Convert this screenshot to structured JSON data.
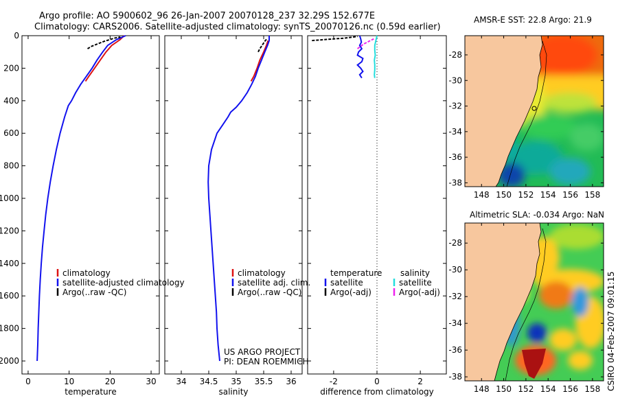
{
  "chart_data": [
    {
      "type": "line",
      "title": "Argo profile: AO 5900602_96 26-Jan-2007 20070128_237 32.29S 152.677E",
      "subtitle": "Climatology: CARS2006. Satellite-adjusted climatology: synTS_20070126.nc (0.59d earlier)",
      "xlabel": "temperature",
      "ylabel": "",
      "xlim": [
        -1.5,
        32
      ],
      "ylim": [
        2080,
        0
      ],
      "xticks": [
        0,
        10,
        20,
        30
      ],
      "yticks": [
        0,
        200,
        400,
        600,
        800,
        1000,
        1200,
        1400,
        1600,
        1800,
        2000
      ],
      "legend": [
        "climatology",
        "satellite-adjusted climatology",
        "Argo(..raw -QC)"
      ],
      "series": [
        {
          "name": "climatology",
          "color": "#dd1111",
          "depth": [
            0,
            25,
            60,
            100,
            150,
            200,
            250,
            280
          ],
          "values": [
            23.4,
            22.4,
            20.4,
            19.0,
            17.6,
            16.2,
            14.8,
            14.0
          ]
        },
        {
          "name": "satellite-adjusted climatology",
          "color": "#1111ee",
          "depth": [
            0,
            25,
            60,
            100,
            150,
            200,
            250,
            300,
            350,
            400,
            430,
            500,
            600,
            700,
            800,
            900,
            1000,
            1100,
            1200,
            1300,
            1400,
            1500,
            1600,
            1700,
            1800,
            1900,
            2000
          ],
          "values": [
            23.8,
            21.5,
            19.4,
            18.2,
            16.8,
            15.6,
            14.2,
            12.8,
            11.6,
            10.6,
            9.8,
            8.9,
            7.8,
            6.9,
            6.1,
            5.4,
            4.8,
            4.3,
            3.9,
            3.5,
            3.2,
            2.95,
            2.75,
            2.6,
            2.45,
            2.35,
            2.2
          ]
        },
        {
          "name": "Argo(..raw -QC)",
          "color": "#000000",
          "depth": [
            80,
            65,
            50,
            35,
            25,
            15,
            8
          ],
          "values": [
            14.5,
            15.5,
            17.0,
            18.5,
            19.8,
            21.0,
            22.5
          ]
        }
      ]
    },
    {
      "type": "line",
      "xlabel": "salinity",
      "xlim": [
        33.7,
        36.2
      ],
      "ylim": [
        2080,
        0
      ],
      "xticks": [
        34,
        34.5,
        35,
        35.5,
        36
      ],
      "yticks": [
        0,
        200,
        400,
        600,
        800,
        1000,
        1200,
        1400,
        1600,
        1800,
        2000
      ],
      "legend": [
        "climatology",
        "satellite adj. clim.",
        "Argo(..raw -QC)"
      ],
      "annotation": [
        "US ARGO PROJECT",
        "PI: DEAN ROEMMICH"
      ],
      "series": [
        {
          "name": "climatology",
          "color": "#dd1111",
          "depth": [
            30,
            60,
            100,
            150,
            200,
            250,
            280
          ],
          "values": [
            35.58,
            35.55,
            35.5,
            35.43,
            35.38,
            35.32,
            35.27
          ]
        },
        {
          "name": "satellite adj. clim.",
          "color": "#1111ee",
          "depth": [
            0,
            30,
            60,
            100,
            150,
            200,
            250,
            300,
            350,
            400,
            440,
            470,
            500,
            550,
            600,
            700,
            800,
            900,
            1000,
            1100,
            1200,
            1300,
            1400,
            1500,
            1600,
            1700,
            1800,
            1900,
            2000
          ],
          "values": [
            35.6,
            35.6,
            35.57,
            35.52,
            35.46,
            35.4,
            35.35,
            35.28,
            35.2,
            35.1,
            35.0,
            34.9,
            34.85,
            34.75,
            34.65,
            34.55,
            34.5,
            34.49,
            34.5,
            34.52,
            34.54,
            34.56,
            34.58,
            34.6,
            34.62,
            34.64,
            34.65,
            34.67,
            34.7
          ]
        },
        {
          "name": "Argo(..raw -QC)",
          "color": "#000000",
          "depth": [
            100,
            80,
            60,
            45,
            30,
            20
          ],
          "values": [
            35.4,
            35.43,
            35.47,
            35.5,
            35.53,
            35.56
          ]
        }
      ]
    },
    {
      "type": "line",
      "xlabel": "difference from climatology",
      "xlim": [
        -3.2,
        3.2
      ],
      "ylim": [
        2080,
        0
      ],
      "xticks": [
        -2,
        0,
        2
      ],
      "yticks": [
        0,
        200,
        400,
        600,
        800,
        1000,
        1200,
        1400,
        1600,
        1800,
        2000
      ],
      "legend": {
        "temperature_header": "temperature",
        "salinity_header": "salinity",
        "entries": [
          "satellite",
          "Argo(-adj)",
          "satellite",
          "Argo(-adj)"
        ]
      },
      "series": [
        {
          "name": "temperature satellite",
          "color": "#1111ee",
          "depth": [
            0,
            20,
            40,
            60,
            80,
            100,
            120,
            140,
            160,
            180,
            200,
            220,
            240,
            260
          ],
          "values": [
            -0.8,
            -0.75,
            -0.72,
            -0.8,
            -0.7,
            -0.85,
            -0.9,
            -0.65,
            -0.7,
            -0.9,
            -0.75,
            -0.65,
            -0.8,
            -0.7
          ]
        },
        {
          "name": "temperature Argo(-adj)",
          "color": "#000000",
          "depth": [
            30,
            25,
            20,
            15,
            10,
            5
          ],
          "values": [
            -3.0,
            -2.5,
            -2.0,
            -1.5,
            -1.2,
            -0.9
          ]
        },
        {
          "name": "salinity satellite",
          "color": "#22dddd",
          "depth": [
            0,
            30,
            60,
            90,
            120,
            150,
            180,
            210,
            240,
            260
          ],
          "values": [
            0.0,
            -0.05,
            -0.1,
            -0.1,
            -0.08,
            -0.12,
            -0.1,
            -0.1,
            -0.12,
            -0.1
          ]
        },
        {
          "name": "salinity Argo(-adj)",
          "color": "#ee22ee",
          "depth": [
            80,
            70,
            60,
            50,
            40,
            30,
            20
          ],
          "values": [
            -0.9,
            -0.8,
            -0.7,
            -0.6,
            -0.45,
            -0.3,
            -0.15
          ]
        }
      ]
    },
    {
      "type": "heatmap",
      "title": "AMSR-E SST: 22.8 Argo: 21.9",
      "xticks": [
        "148",
        "150",
        "152",
        "154",
        "156",
        "158"
      ],
      "yticks": [
        "-28",
        "-30",
        "-32",
        "-34",
        "-36",
        "-38"
      ],
      "xlim": [
        146.5,
        159
      ],
      "ylim": [
        -38.3,
        -26.5
      ],
      "argo_position": [
        152.677,
        -32.29
      ]
    },
    {
      "type": "heatmap",
      "title": "Altimetric SLA: -0.034 Argo: NaN",
      "xticks": [
        "148",
        "150",
        "152",
        "154",
        "156",
        "158"
      ],
      "yticks": [
        "-28",
        "-30",
        "-32",
        "-34",
        "-36",
        "-38"
      ],
      "xlim": [
        146.5,
        159
      ],
      "ylim": [
        -38.3,
        -26.5
      ]
    }
  ],
  "side_label": "CSIRO 04-Feb-2007 09:01:15"
}
